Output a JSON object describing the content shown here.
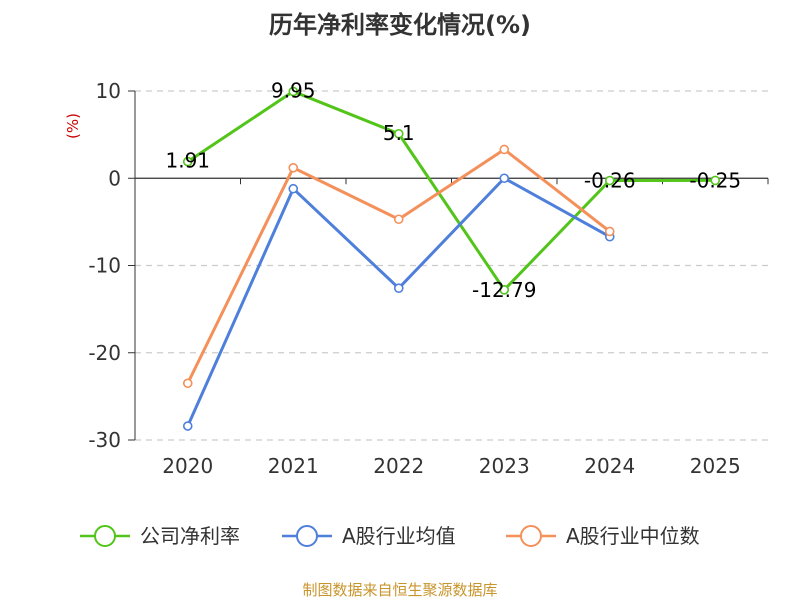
{
  "chart_data": {
    "type": "line",
    "title": "历年净利率变化情况(%)",
    "ylabel": "(%)",
    "categories": [
      "2020",
      "2021",
      "2022",
      "2023",
      "2024",
      "2025"
    ],
    "ylim": [
      -30,
      10
    ],
    "yticks": [
      10,
      0,
      -10,
      -20,
      -30
    ],
    "grid": true,
    "legend_position": "bottom",
    "series": [
      {
        "name": "公司净利率",
        "color": "#52c41a",
        "values": [
          1.91,
          9.95,
          5.1,
          -12.79,
          -0.26,
          -0.25
        ],
        "labels": [
          "1.91",
          "9.95",
          "5.1",
          "-12.79",
          "-0.26",
          "-0.25"
        ]
      },
      {
        "name": "A股行业均值",
        "color": "#4e7fdb",
        "values": [
          -28.4,
          -1.2,
          -12.6,
          0,
          -6.7,
          null
        ]
      },
      {
        "name": "A股行业中位数",
        "color": "#f4905a",
        "values": [
          -23.5,
          1.2,
          -4.7,
          3.3,
          -6.1,
          null
        ]
      }
    ]
  },
  "source": "制图数据来自恒生聚源数据库"
}
